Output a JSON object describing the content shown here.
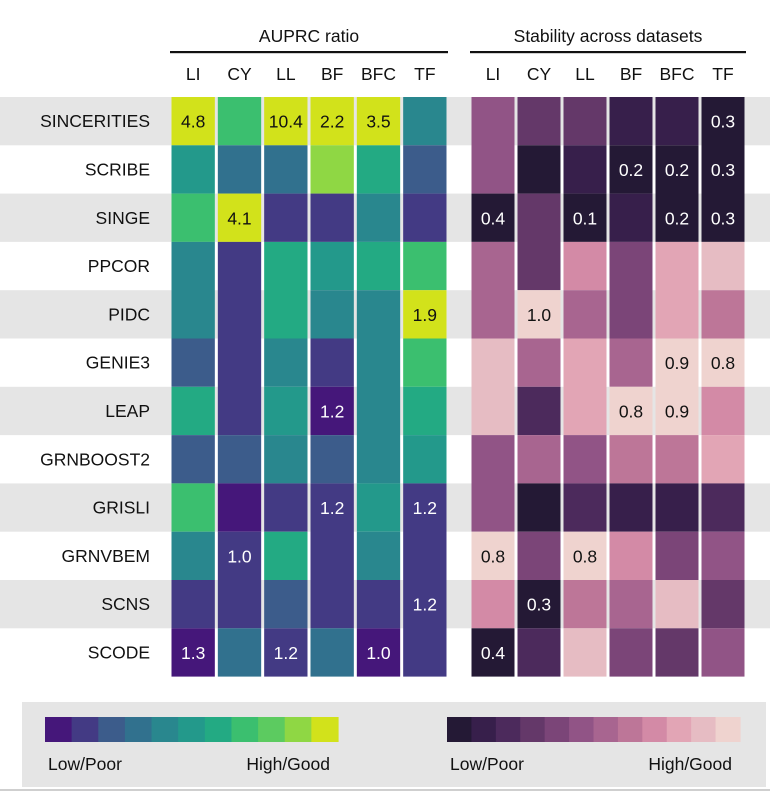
{
  "chart_data": {
    "type": "heatmap",
    "panels": [
      {
        "title": "AUPRC ratio",
        "columns": [
          "LI",
          "CY",
          "LL",
          "BF",
          "BFC",
          "TF"
        ],
        "palette": [
          "#45177a",
          "#433a84",
          "#3c5c8b",
          "#31718e",
          "#29878e",
          "#23998b",
          "#23aa83",
          "#3bbf6f",
          "#5ccb60",
          "#8fd744",
          "#d2e21b"
        ],
        "legend": {
          "low": "Low/Poor",
          "high": "High/Good"
        }
      },
      {
        "title": "Stability across datasets",
        "columns": [
          "LI",
          "CY",
          "LL",
          "BF",
          "BFC",
          "TF"
        ],
        "palette": [
          "#241935",
          "#371f4b",
          "#4c2a5c",
          "#643869",
          "#7b4578",
          "#915486",
          "#a86590",
          "#bd7698",
          "#d38aa6",
          "#e2a5b5",
          "#e6bcc3",
          "#efd3cf"
        ],
        "legend": {
          "low": "Low/Poor",
          "high": "High/Good"
        }
      }
    ],
    "rows": [
      "SINCERITIES",
      "SCRIBE",
      "SINGE",
      "PPCOR",
      "PIDC",
      "GENIE3",
      "LEAP",
      "GRNBOOST2",
      "GRISLI",
      "GRNVBEM",
      "SCNS",
      "SCODE"
    ],
    "auprc_color_levels": [
      [
        10,
        7,
        10,
        10,
        10,
        4
      ],
      [
        5,
        3,
        3,
        9,
        6,
        2
      ],
      [
        7,
        10,
        1,
        1,
        4,
        1
      ],
      [
        4,
        1,
        6,
        5,
        6,
        7
      ],
      [
        4,
        1,
        6,
        4,
        4,
        10
      ],
      [
        2,
        1,
        4,
        1,
        4,
        7
      ],
      [
        6,
        1,
        5,
        0,
        4,
        6
      ],
      [
        2,
        2,
        4,
        2,
        4,
        5
      ],
      [
        7,
        0,
        1,
        1,
        5,
        1
      ],
      [
        4,
        1,
        6,
        1,
        4,
        1
      ],
      [
        1,
        1,
        2,
        1,
        1,
        1
      ],
      [
        0,
        3,
        1,
        3,
        0,
        1
      ]
    ],
    "auprc_labels": [
      [
        "4.8",
        "",
        "10.4",
        "2.2",
        "3.5",
        ""
      ],
      [
        "",
        "",
        "",
        "",
        "",
        ""
      ],
      [
        "",
        "4.1",
        "",
        "",
        "",
        ""
      ],
      [
        "",
        "",
        "",
        "",
        "",
        ""
      ],
      [
        "",
        "",
        "",
        "",
        "",
        "1.9"
      ],
      [
        "",
        "",
        "",
        "",
        "",
        ""
      ],
      [
        "",
        "",
        "",
        "1.2",
        "",
        ""
      ],
      [
        "",
        "",
        "",
        "",
        "",
        ""
      ],
      [
        "",
        "",
        "",
        "1.2",
        "",
        "1.2"
      ],
      [
        "",
        "1.0",
        "",
        "",
        "",
        ""
      ],
      [
        "",
        "",
        "",
        "",
        "",
        "1.2"
      ],
      [
        "1.3",
        "",
        "1.2",
        "",
        "1.0",
        ""
      ]
    ],
    "stability_color_levels": [
      [
        5,
        3,
        3,
        1,
        1,
        0
      ],
      [
        5,
        0,
        1,
        0,
        0,
        0
      ],
      [
        0,
        3,
        0,
        1,
        0,
        0
      ],
      [
        6,
        3,
        8,
        4,
        9,
        10
      ],
      [
        6,
        11,
        6,
        4,
        9,
        7
      ],
      [
        10,
        6,
        9,
        6,
        11,
        11
      ],
      [
        10,
        2,
        9,
        11,
        11,
        8
      ],
      [
        5,
        6,
        5,
        7,
        7,
        9
      ],
      [
        5,
        0,
        2,
        1,
        1,
        2
      ],
      [
        11,
        4,
        11,
        8,
        4,
        5
      ],
      [
        8,
        0,
        7,
        6,
        10,
        3
      ],
      [
        0,
        2,
        10,
        4,
        3,
        5
      ]
    ],
    "stability_labels": [
      [
        "",
        "",
        "",
        "",
        "",
        "0.3"
      ],
      [
        "",
        "",
        "",
        "0.2",
        "0.2",
        "0.3"
      ],
      [
        "0.4",
        "",
        "0.1",
        "",
        "0.2",
        "0.3"
      ],
      [
        "",
        "",
        "",
        "",
        "",
        ""
      ],
      [
        "",
        "1.0",
        "",
        "",
        "",
        ""
      ],
      [
        "",
        "",
        "",
        "",
        "0.9",
        "0.8"
      ],
      [
        "",
        "",
        "",
        "0.8",
        "0.9",
        ""
      ],
      [
        "",
        "",
        "",
        "",
        "",
        ""
      ],
      [
        "",
        "",
        "",
        "",
        "",
        ""
      ],
      [
        "0.8",
        "",
        "0.8",
        "",
        "",
        ""
      ],
      [
        "",
        "0.3",
        "",
        "",
        "",
        ""
      ],
      [
        "0.4",
        "",
        "",
        "",
        "",
        ""
      ]
    ],
    "row_stripes": "alternating grey bands starting with SINCERITIES"
  }
}
